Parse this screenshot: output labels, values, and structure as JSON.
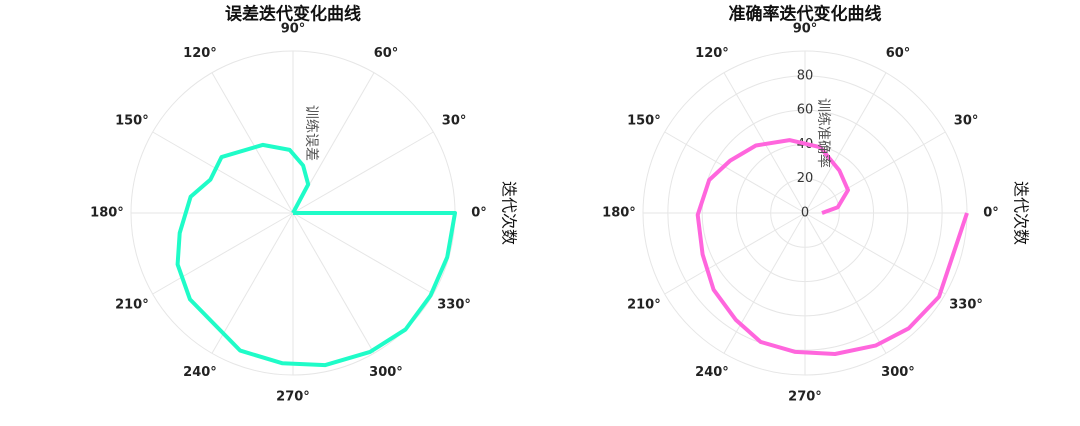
{
  "chart_data": [
    {
      "type": "polar-line",
      "title": "误差迭代变化曲线",
      "xlabel": "迭代次数",
      "ylabel": "训练误差",
      "color": "#1ffcc8",
      "x": [
        0,
        62,
        78,
        93,
        114,
        142,
        158,
        171,
        190,
        204,
        220,
        249,
        266,
        282,
        299,
        314,
        329,
        344,
        360,
        360
      ],
      "values": [
        0,
        0.2,
        0.3,
        0.39,
        0.46,
        0.56,
        0.55,
        0.64,
        0.71,
        0.78,
        0.83,
        0.91,
        0.93,
        0.96,
        0.98,
        1.0,
        0.99,
        0.99,
        1.0,
        0
      ],
      "xlim": [
        0,
        360
      ],
      "ylim": [
        0,
        1
      ],
      "xticks": [
        {
          "value": 0,
          "label": "0°"
        },
        {
          "value": 30,
          "label": "30°"
        },
        {
          "value": 60,
          "label": "60°"
        },
        {
          "value": 90,
          "label": "90°"
        },
        {
          "value": 120,
          "label": "120°"
        },
        {
          "value": 150,
          "label": "150°"
        },
        {
          "value": 180,
          "label": "180°"
        },
        {
          "value": 210,
          "label": "210°"
        },
        {
          "value": 240,
          "label": "240°"
        },
        {
          "value": 270,
          "label": "270°"
        },
        {
          "value": 300,
          "label": "300°"
        },
        {
          "value": 330,
          "label": "330°"
        }
      ],
      "grid": true
    },
    {
      "type": "polar-line",
      "title": "准确率迭代变化曲线",
      "xlabel": "迭代次数",
      "ylabel": "训练准确率",
      "color": "#ff66dd",
      "x": [
        0,
        10,
        28,
        51,
        77,
        102,
        126,
        145,
        161,
        181,
        202,
        220,
        237,
        251,
        266,
        282,
        298,
        312,
        328,
        360
      ],
      "values": [
        9.9,
        19.4,
        28.4,
        31.9,
        39.4,
        43.5,
        48.7,
        53.3,
        59.1,
        62.6,
        64.4,
        69.6,
        74.2,
        79.5,
        81.2,
        84.1,
        87.6,
        90.5,
        92.2,
        94.5
      ],
      "xlim": [
        0,
        360
      ],
      "ylim": [
        0,
        94.5
      ],
      "xticks": [
        {
          "value": 0,
          "label": "0°"
        },
        {
          "value": 30,
          "label": "30°"
        },
        {
          "value": 60,
          "label": "60°"
        },
        {
          "value": 90,
          "label": "90°"
        },
        {
          "value": 120,
          "label": "120°"
        },
        {
          "value": 150,
          "label": "150°"
        },
        {
          "value": 180,
          "label": "180°"
        },
        {
          "value": 210,
          "label": "210°"
        },
        {
          "value": 240,
          "label": "240°"
        },
        {
          "value": 270,
          "label": "270°"
        },
        {
          "value": 300,
          "label": "300°"
        },
        {
          "value": 330,
          "label": "330°"
        }
      ],
      "yticks": [
        0,
        20,
        40,
        60,
        80
      ],
      "grid": true
    }
  ]
}
